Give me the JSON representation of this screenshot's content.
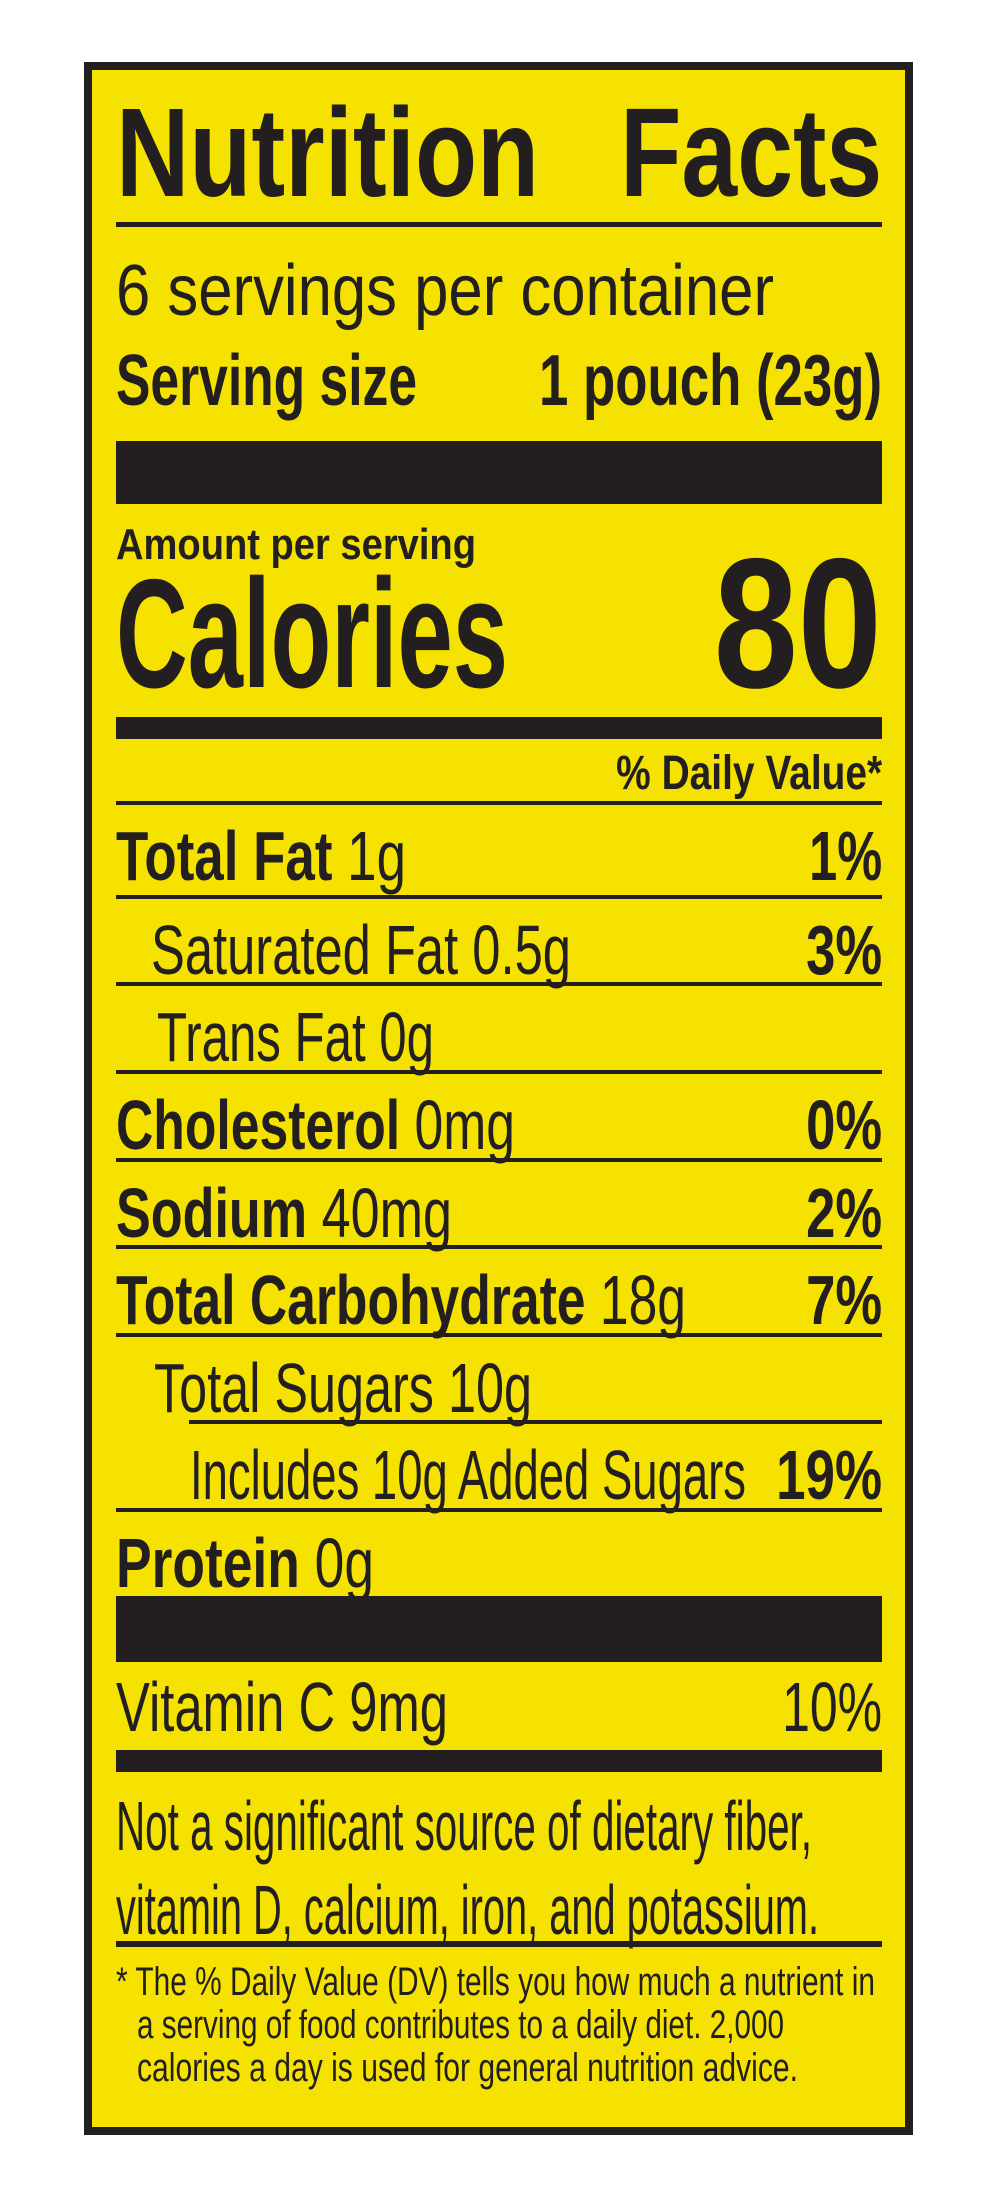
{
  "colors": {
    "background": "#f5e200",
    "ink": "#231f20"
  },
  "title": {
    "word1": "Nutrition",
    "word2": "Facts"
  },
  "servings_per_container": "6 servings per container",
  "serving_size": {
    "label": "Serving size",
    "value": "1 pouch (23g)"
  },
  "amount_per_serving": "Amount per serving",
  "calories": {
    "label": "Calories",
    "value": "80"
  },
  "daily_value_header": "% Daily Value*",
  "nutrients": [
    {
      "label": "Total Fat",
      "amount": "1g",
      "dv": "1%"
    },
    {
      "label": "Saturated Fat",
      "amount": "0.5g",
      "dv": "3%"
    },
    {
      "label": "Trans Fat",
      "amount": "0g",
      "dv": ""
    },
    {
      "label": "Cholesterol",
      "amount": "0mg",
      "dv": "0%"
    },
    {
      "label": "Sodium",
      "amount": "40mg",
      "dv": "2%"
    },
    {
      "label": "Total Carbohydrate",
      "amount": "18g",
      "dv": "7%"
    },
    {
      "label": "Total Sugars",
      "amount": "10g",
      "dv": ""
    },
    {
      "label": "Includes 10g Added Sugars",
      "amount": "",
      "dv": "19%"
    },
    {
      "label": "Protein",
      "amount": "0g",
      "dv": ""
    }
  ],
  "vitamins": [
    {
      "label": "Vitamin C",
      "amount": "9mg",
      "dv": "10%"
    }
  ],
  "not_significant": [
    "Not a significant source of dietary fiber,",
    "vitamin D, calcium, iron, and potassium."
  ],
  "footnote": [
    "* The % Daily Value (DV) tells you how much a nutrient in",
    "a serving of food contributes to a daily diet. 2,000",
    "calories a day is used for general nutrition advice."
  ]
}
